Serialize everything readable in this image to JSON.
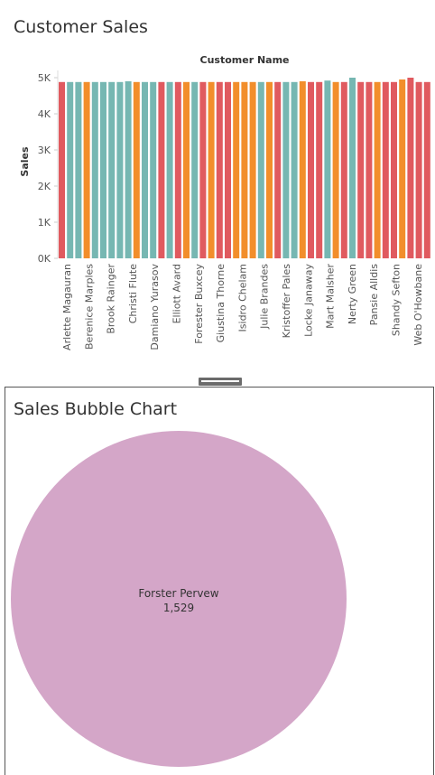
{
  "top_panel": {
    "title": "Customer Sales"
  },
  "bottom_panel": {
    "title": "Sales Bubble Chart"
  },
  "colors": {
    "red": "#e05a5f",
    "teal": "#76b7b2",
    "orange": "#f28e2b",
    "pink": "#d4a6c8"
  },
  "chart_data": [
    {
      "type": "bar",
      "title": "Customer Name",
      "ylabel": "Sales",
      "ylim": [
        0,
        5000
      ],
      "yticks": [
        "0K",
        "1K",
        "2K",
        "3K",
        "4K",
        "5K"
      ],
      "x_labels": [
        "Arlette Magauran",
        "Berenice Marples",
        "Brook Rainger",
        "Christi Flute",
        "Damiano Yurasov",
        "Elliott Avard",
        "Forester Buxcey",
        "Giustina Thorne",
        "Isidro Chelam",
        "Julie Brandes",
        "Kristoffer Pales",
        "Locke Janaway",
        "Mart Malsher",
        "Nerty Green",
        "Pansie Alldis",
        "Shandy Sefton",
        "Web O'Howbane"
      ],
      "values": [
        4880,
        4880,
        4880,
        4880,
        4880,
        4880,
        4880,
        4880,
        4900,
        4880,
        4880,
        4880,
        4880,
        4880,
        4880,
        4880,
        4880,
        4880,
        4880,
        4880,
        4880,
        4880,
        4880,
        4880,
        4880,
        4880,
        4880,
        4880,
        4880,
        4900,
        4880,
        4880,
        4920,
        4880,
        4880,
        5000,
        4880,
        4880,
        4880,
        4880,
        4880,
        4950,
        5000,
        4880,
        4880
      ],
      "bar_colors": [
        "red",
        "teal",
        "teal",
        "orange",
        "teal",
        "teal",
        "teal",
        "teal",
        "teal",
        "orange",
        "teal",
        "teal",
        "red",
        "teal",
        "red",
        "orange",
        "teal",
        "red",
        "orange",
        "red",
        "red",
        "orange",
        "orange",
        "orange",
        "teal",
        "orange",
        "red",
        "teal",
        "teal",
        "orange",
        "red",
        "red",
        "teal",
        "orange",
        "red",
        "teal",
        "red",
        "red",
        "orange",
        "red",
        "red",
        "orange",
        "red",
        "red",
        "red"
      ]
    },
    {
      "type": "scatter",
      "title": "Sales Bubble Chart",
      "points": [
        {
          "label": "Forster Pervew",
          "value": 1529,
          "value_text": "1,529"
        }
      ]
    }
  ]
}
